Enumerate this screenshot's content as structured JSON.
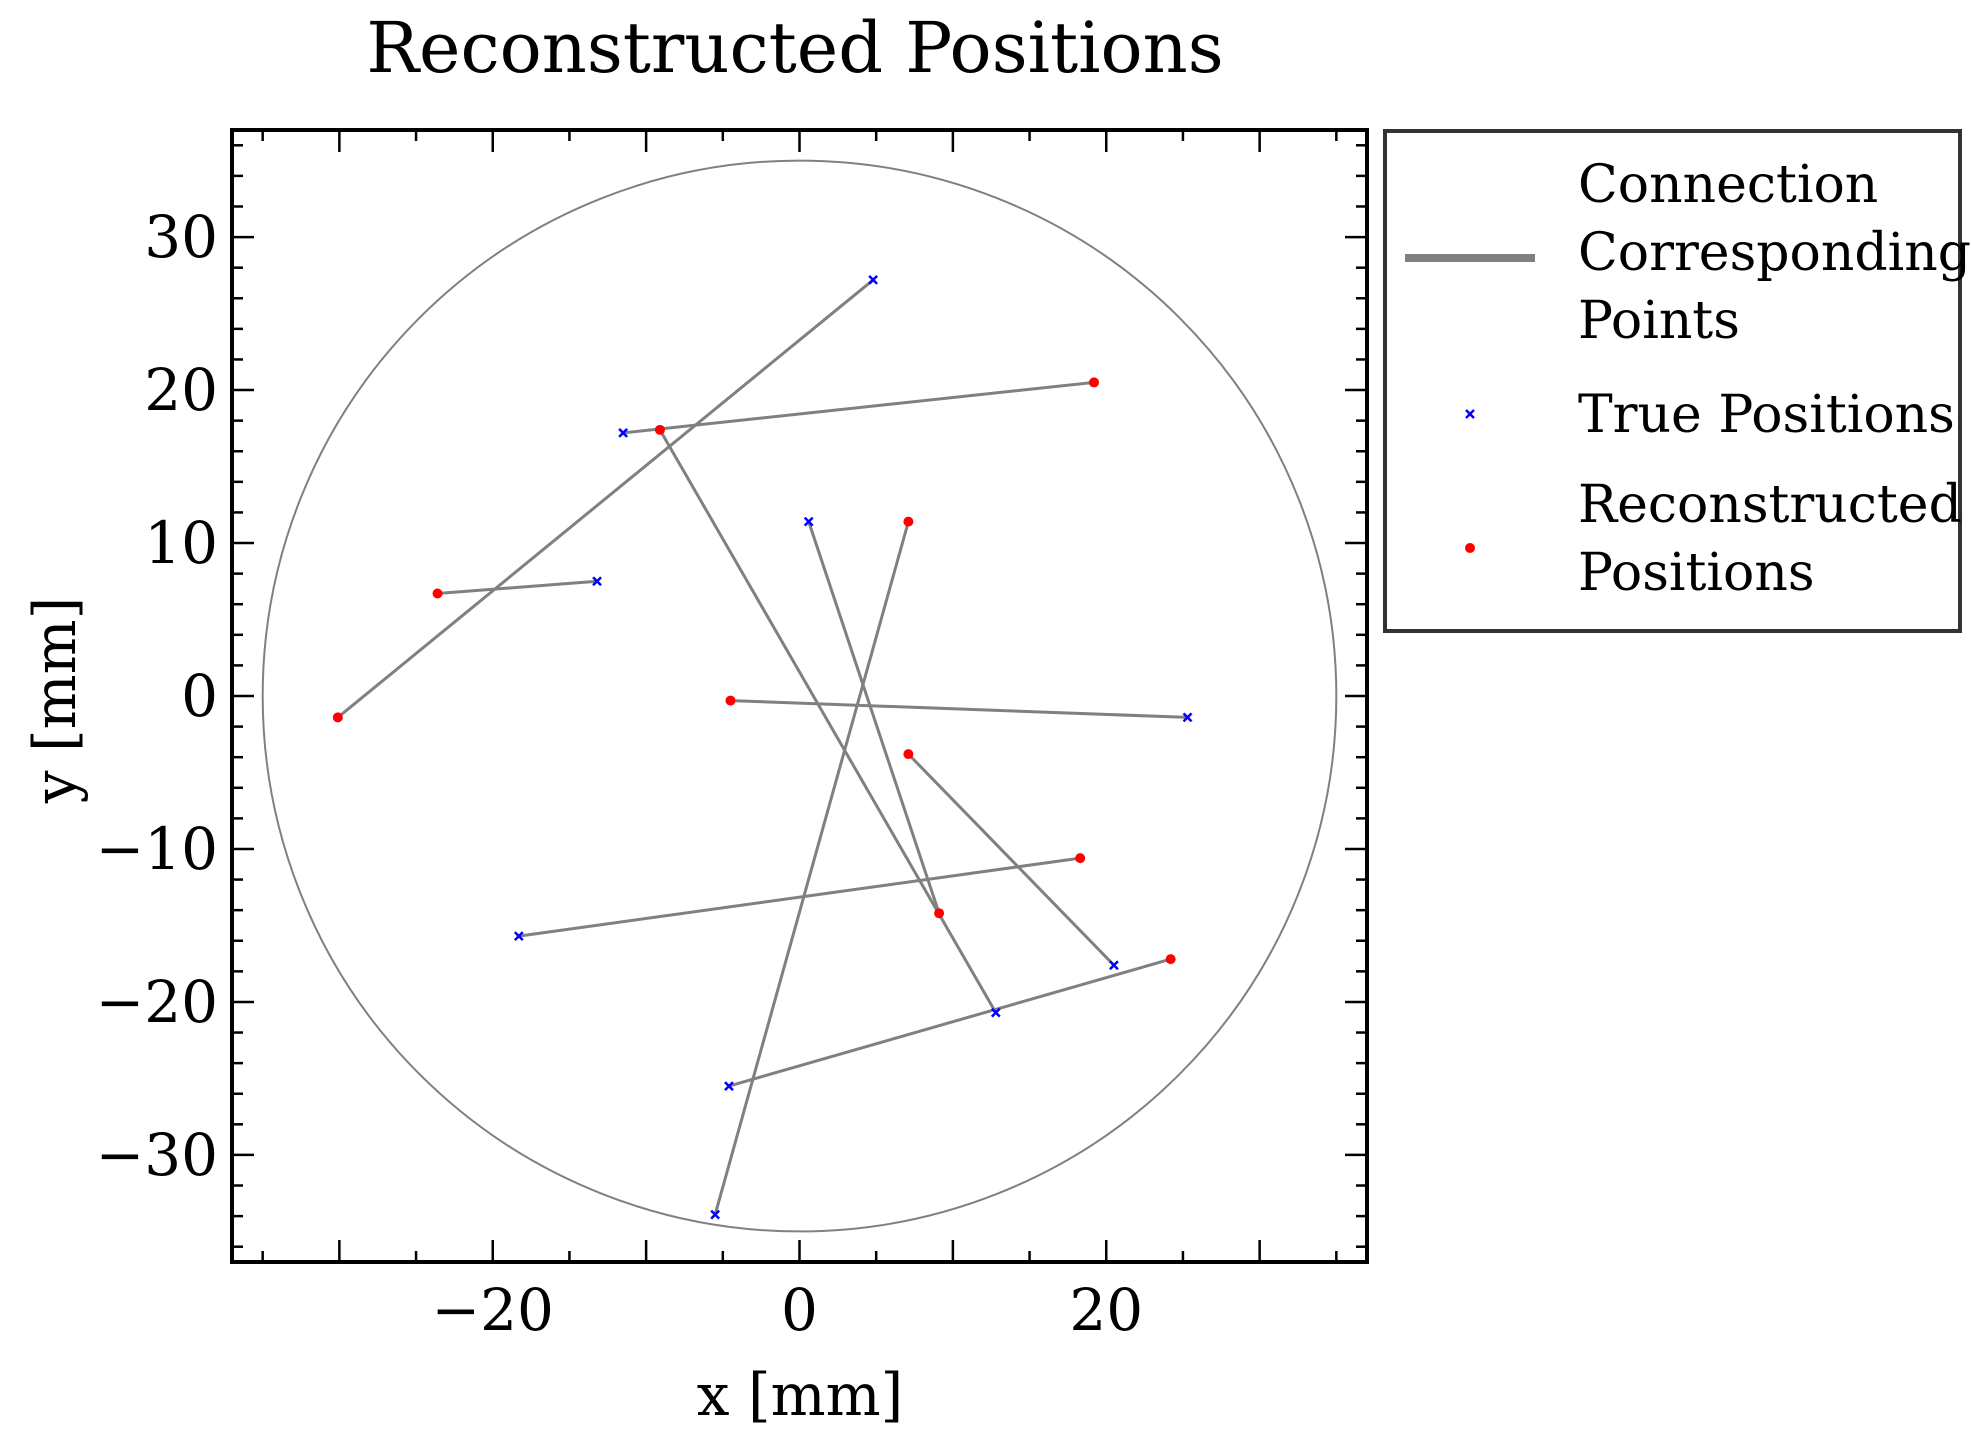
{
  "chart_data": {
    "type": "scatter",
    "title": "Reconstructed Positions",
    "xlabel": "x [mm]",
    "ylabel": "y [mm]",
    "xlim": [
      -37,
      37
    ],
    "ylim": [
      -37,
      37
    ],
    "xticks": [
      -20,
      0,
      20
    ],
    "yticks": [
      -30,
      -20,
      -10,
      0,
      10,
      20,
      30
    ],
    "xtick_labels": [
      "−20",
      "0",
      "20"
    ],
    "ytick_labels": [
      "−30",
      "−20",
      "−10",
      "0",
      "10",
      "20",
      "30"
    ],
    "grid": false,
    "legend_placement": "outside-top-right",
    "boundary_circle": {
      "center": [
        0,
        0
      ],
      "radius": 35,
      "color": "#808080"
    },
    "colors": {
      "true": "#0000ff",
      "reconstructed": "#ff0000",
      "connection": "#808080"
    },
    "legend": [
      {
        "key": "connection",
        "label_lines": [
          "Connection",
          "Corresponding",
          "Points"
        ]
      },
      {
        "key": "true",
        "label_lines": [
          "True Positions"
        ]
      },
      {
        "key": "reconstructed",
        "label_lines": [
          "Reconstructed",
          "Positions"
        ]
      }
    ],
    "series": [
      {
        "name": "True Positions",
        "points": [
          [
            4.8,
            27.2
          ],
          [
            -11.5,
            17.2
          ],
          [
            0.6,
            11.4
          ],
          [
            -13.2,
            7.5
          ],
          [
            25.3,
            -1.4
          ],
          [
            -18.3,
            -15.7
          ],
          [
            20.5,
            -17.6
          ],
          [
            12.8,
            -20.7
          ],
          [
            -4.6,
            -25.5
          ],
          [
            -5.5,
            -33.9
          ]
        ]
      },
      {
        "name": "Reconstructed Positions",
        "points": [
          [
            -30.1,
            -1.4
          ],
          [
            19.2,
            20.5
          ],
          [
            9.1,
            -14.2
          ],
          [
            -23.6,
            6.7
          ],
          [
            -4.5,
            -0.3
          ],
          [
            18.3,
            -10.6
          ],
          [
            7.1,
            -3.8
          ],
          [
            -9.1,
            17.4
          ],
          [
            24.2,
            -17.2
          ],
          [
            7.1,
            11.4
          ]
        ]
      }
    ]
  }
}
